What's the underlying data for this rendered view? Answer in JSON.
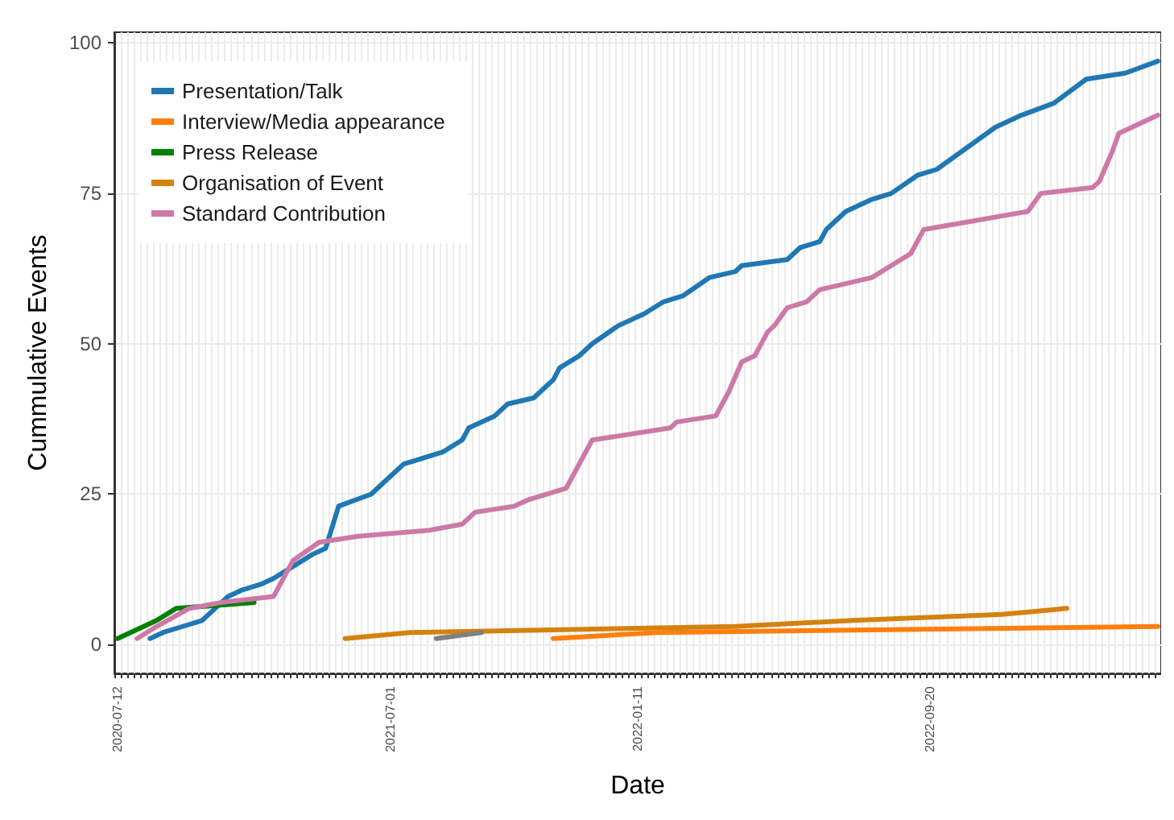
{
  "chart_data": {
    "type": "line",
    "xlabel": "Date",
    "ylabel": "Cummulative Events",
    "categories": [
      "2020-07-12",
      null,
      null,
      null,
      null,
      null,
      null,
      null,
      null,
      null,
      null,
      null,
      null,
      null,
      null,
      null,
      null,
      null,
      null,
      null,
      null,
      null,
      null,
      null,
      null,
      null,
      null,
      null,
      null,
      null,
      null,
      null,
      null,
      null,
      null,
      null,
      null,
      null,
      null,
      null,
      null,
      null,
      "2021-07-01",
      null,
      null,
      null,
      null,
      null,
      null,
      null,
      null,
      null,
      null,
      null,
      null,
      null,
      null,
      null,
      null,
      null,
      null,
      null,
      null,
      null,
      null,
      null,
      null,
      null,
      null,
      null,
      null,
      null,
      null,
      null,
      null,
      null,
      null,
      null,
      null,
      null,
      "2022-01-11",
      null,
      null,
      null,
      null,
      null,
      null,
      null,
      null,
      null,
      null,
      null,
      null,
      null,
      null,
      null,
      null,
      null,
      null,
      null,
      null,
      null,
      null,
      null,
      null,
      null,
      null,
      null,
      null,
      null,
      null,
      null,
      null,
      null,
      null,
      null,
      null,
      null,
      null,
      null,
      null,
      null,
      null,
      null,
      null,
      "2022-09-20",
      null,
      null,
      null,
      null,
      null,
      null,
      null,
      null,
      null,
      null,
      null,
      null,
      null,
      null,
      null,
      null,
      null,
      null,
      null,
      null,
      null,
      null,
      null,
      null,
      null,
      null,
      null,
      null,
      null,
      null,
      null,
      null,
      null,
      null,
      null
    ],
    "series": [
      {
        "name": "Presentation/Talk",
        "color": "#1f78b4",
        "values": [
          null,
          null,
          null,
          null,
          null,
          1,
          null,
          2,
          null,
          null,
          3,
          null,
          null,
          4,
          null,
          6,
          null,
          8,
          null,
          9,
          null,
          null,
          10,
          null,
          11,
          null,
          null,
          13,
          null,
          null,
          15,
          null,
          16,
          null,
          23,
          null,
          null,
          null,
          null,
          25,
          null,
          null,
          28,
          null,
          30,
          null,
          null,
          31,
          null,
          null,
          32,
          null,
          null,
          34,
          36,
          null,
          null,
          null,
          38,
          null,
          40,
          null,
          null,
          null,
          41,
          null,
          43,
          44,
          46,
          null,
          null,
          48,
          null,
          50,
          null,
          null,
          null,
          53,
          null,
          null,
          null,
          55,
          null,
          null,
          57,
          null,
          null,
          58,
          null,
          null,
          null,
          61,
          null,
          null,
          null,
          62,
          63,
          null,
          null,
          null,
          null,
          null,
          null,
          64,
          null,
          66,
          null,
          null,
          67,
          69,
          70,
          null,
          72,
          null,
          73,
          null,
          74,
          null,
          null,
          75,
          null,
          null,
          null,
          78,
          null,
          null,
          79,
          null,
          null,
          null,
          null,
          null,
          null,
          null,
          null,
          86,
          null,
          87,
          null,
          88,
          null,
          null,
          null,
          null,
          90,
          null,
          null,
          null,
          null,
          94,
          null,
          null,
          null,
          null,
          null,
          95,
          null,
          null,
          null,
          null,
          97
        ]
      },
      {
        "name": "Interview/Media appearance",
        "color": "#ff7f0e",
        "values": [
          null,
          null,
          null,
          null,
          null,
          null,
          null,
          null,
          null,
          null,
          null,
          null,
          null,
          null,
          null,
          null,
          null,
          null,
          null,
          null,
          null,
          null,
          null,
          null,
          null,
          null,
          null,
          null,
          null,
          null,
          null,
          null,
          null,
          null,
          null,
          null,
          null,
          null,
          null,
          null,
          null,
          null,
          null,
          null,
          null,
          null,
          null,
          null,
          null,
          null,
          null,
          null,
          null,
          null,
          null,
          null,
          null,
          null,
          null,
          null,
          null,
          null,
          null,
          null,
          null,
          null,
          null,
          1,
          null,
          null,
          null,
          null,
          null,
          null,
          null,
          null,
          null,
          null,
          null,
          null,
          null,
          null,
          null,
          2,
          null,
          null,
          null,
          null,
          null,
          null,
          null,
          null,
          null,
          null,
          null,
          null,
          null,
          null,
          null,
          null,
          null,
          null,
          null,
          null,
          null,
          null,
          null,
          null,
          null,
          null,
          null,
          null,
          null,
          null,
          null,
          null,
          null,
          null,
          null,
          null,
          null,
          null,
          null,
          null,
          null,
          null,
          null,
          null,
          null,
          null,
          null,
          null,
          null,
          null,
          null,
          null,
          null,
          null,
          null,
          null,
          null,
          null,
          null,
          null,
          null,
          null,
          null,
          null,
          null,
          null,
          null,
          null,
          null,
          null,
          null,
          null,
          null,
          null,
          null,
          null,
          3
        ]
      },
      {
        "name": "Press Release",
        "color": "#008000",
        "values": [
          1,
          null,
          2,
          null,
          3,
          null,
          4,
          null,
          null,
          6,
          null,
          null,
          null,
          null,
          null,
          null,
          null,
          null,
          null,
          null,
          null,
          7,
          null,
          null,
          null,
          null,
          null,
          null,
          null,
          null,
          null,
          null,
          null,
          null,
          null,
          null,
          null,
          null,
          null,
          null,
          null,
          null,
          null,
          null,
          null,
          null,
          null,
          null,
          null,
          null,
          null,
          null,
          null,
          null,
          null,
          null,
          null,
          null,
          null,
          null,
          null,
          null,
          null,
          null,
          null,
          null,
          null,
          null,
          null,
          null,
          null,
          null,
          null,
          null,
          null,
          null,
          null,
          null,
          null,
          null,
          null,
          null,
          null,
          null,
          null,
          null,
          null,
          null,
          null,
          null,
          null,
          null,
          null,
          null,
          null,
          null,
          null,
          null,
          null,
          null,
          null,
          null,
          null,
          null,
          null,
          null,
          null,
          null,
          null,
          null,
          null,
          null,
          null,
          null,
          null,
          null,
          null,
          null,
          null,
          null,
          null,
          null,
          null,
          null,
          null,
          null,
          null,
          null,
          null,
          null,
          null,
          null,
          null,
          null,
          null,
          null,
          null,
          null,
          null,
          null,
          null,
          null,
          null,
          null,
          null,
          null,
          null,
          null,
          null,
          null,
          null,
          null,
          null,
          null,
          null,
          null,
          null,
          null,
          null,
          null,
          null
        ]
      },
      {
        "name": "Organisation of Event",
        "color": "#d4820f",
        "values": [
          null,
          null,
          null,
          null,
          null,
          null,
          null,
          null,
          null,
          null,
          null,
          null,
          null,
          null,
          null,
          null,
          null,
          null,
          null,
          null,
          null,
          null,
          null,
          null,
          null,
          null,
          null,
          null,
          null,
          null,
          null,
          null,
          null,
          null,
          null,
          1,
          null,
          null,
          null,
          null,
          null,
          null,
          null,
          null,
          null,
          2,
          null,
          null,
          null,
          null,
          null,
          null,
          null,
          null,
          null,
          null,
          null,
          null,
          null,
          null,
          null,
          null,
          null,
          null,
          null,
          null,
          null,
          null,
          null,
          null,
          null,
          null,
          null,
          null,
          null,
          null,
          null,
          null,
          null,
          null,
          null,
          null,
          null,
          null,
          null,
          null,
          null,
          null,
          null,
          null,
          null,
          null,
          null,
          null,
          null,
          3,
          null,
          null,
          null,
          null,
          null,
          null,
          null,
          null,
          null,
          null,
          null,
          null,
          null,
          null,
          null,
          null,
          null,
          4,
          null,
          null,
          null,
          null,
          null,
          null,
          null,
          null,
          null,
          null,
          null,
          null,
          null,
          null,
          null,
          null,
          null,
          null,
          null,
          null,
          null,
          null,
          5,
          null,
          null,
          null,
          null,
          null,
          null,
          null,
          null,
          null,
          6,
          null,
          null,
          null,
          null,
          null,
          null,
          null,
          null,
          null,
          null,
          null,
          null,
          null,
          null
        ]
      },
      {
        "name": "Standard Contribution",
        "color": "#cc79a7",
        "values": [
          null,
          null,
          null,
          1,
          null,
          null,
          3,
          null,
          null,
          null,
          null,
          6,
          null,
          null,
          null,
          null,
          7,
          null,
          null,
          null,
          null,
          null,
          null,
          null,
          8,
          null,
          null,
          14,
          null,
          null,
          null,
          17,
          null,
          null,
          null,
          null,
          null,
          18,
          null,
          null,
          null,
          null,
          null,
          null,
          null,
          null,
          null,
          null,
          19,
          null,
          null,
          null,
          null,
          20,
          null,
          22,
          null,
          null,
          null,
          null,
          null,
          23,
          null,
          24,
          null,
          null,
          null,
          null,
          null,
          26,
          null,
          null,
          null,
          34,
          null,
          null,
          null,
          null,
          null,
          null,
          null,
          null,
          null,
          null,
          null,
          36,
          37,
          null,
          null,
          null,
          null,
          null,
          38,
          null,
          42,
          null,
          47,
          null,
          48,
          null,
          52,
          53,
          null,
          56,
          null,
          null,
          57,
          null,
          59,
          null,
          null,
          null,
          null,
          null,
          null,
          null,
          61,
          null,
          null,
          null,
          null,
          null,
          65,
          null,
          69,
          null,
          null,
          null,
          null,
          null,
          null,
          null,
          null,
          null,
          null,
          null,
          null,
          null,
          null,
          null,
          72,
          null,
          75,
          null,
          null,
          null,
          null,
          null,
          null,
          null,
          76,
          77,
          null,
          82,
          85,
          null,
          86,
          null,
          87,
          null,
          88
        ]
      },
      {
        "color": "#808080",
        "values": [
          null,
          null,
          null,
          null,
          null,
          null,
          null,
          null,
          null,
          null,
          null,
          null,
          null,
          null,
          null,
          null,
          null,
          null,
          null,
          null,
          null,
          null,
          null,
          null,
          null,
          null,
          null,
          null,
          null,
          null,
          null,
          null,
          null,
          null,
          null,
          null,
          null,
          null,
          null,
          null,
          null,
          null,
          null,
          null,
          null,
          null,
          null,
          null,
          null,
          1,
          null,
          null,
          null,
          null,
          null,
          null,
          2,
          null,
          null,
          null,
          null,
          null,
          null,
          null,
          null,
          null,
          null,
          null,
          null,
          null,
          null,
          null,
          null,
          null,
          null,
          null,
          null,
          null,
          null,
          null,
          null,
          null,
          null,
          null,
          null,
          null,
          null,
          null,
          null,
          null,
          null,
          null,
          null,
          null,
          null,
          null,
          null,
          null,
          null,
          null,
          null,
          null,
          null,
          null,
          null,
          null,
          null,
          null,
          null,
          null,
          null,
          null,
          null,
          null,
          null,
          null,
          null,
          null,
          null,
          null,
          null,
          null,
          null,
          null,
          null,
          null,
          null,
          null,
          null,
          null,
          null,
          null,
          null,
          null,
          null,
          null,
          null,
          null,
          null,
          null,
          null,
          null,
          null,
          null,
          null,
          null,
          null,
          null,
          null,
          null,
          null,
          null,
          null,
          null,
          null,
          null,
          null,
          null,
          null,
          null,
          null
        ]
      }
    ],
    "ylim": [
      -4.8,
      101.8
    ],
    "yticks": [
      0,
      25,
      50,
      75,
      100
    ],
    "grid": true,
    "legend": "top left"
  }
}
